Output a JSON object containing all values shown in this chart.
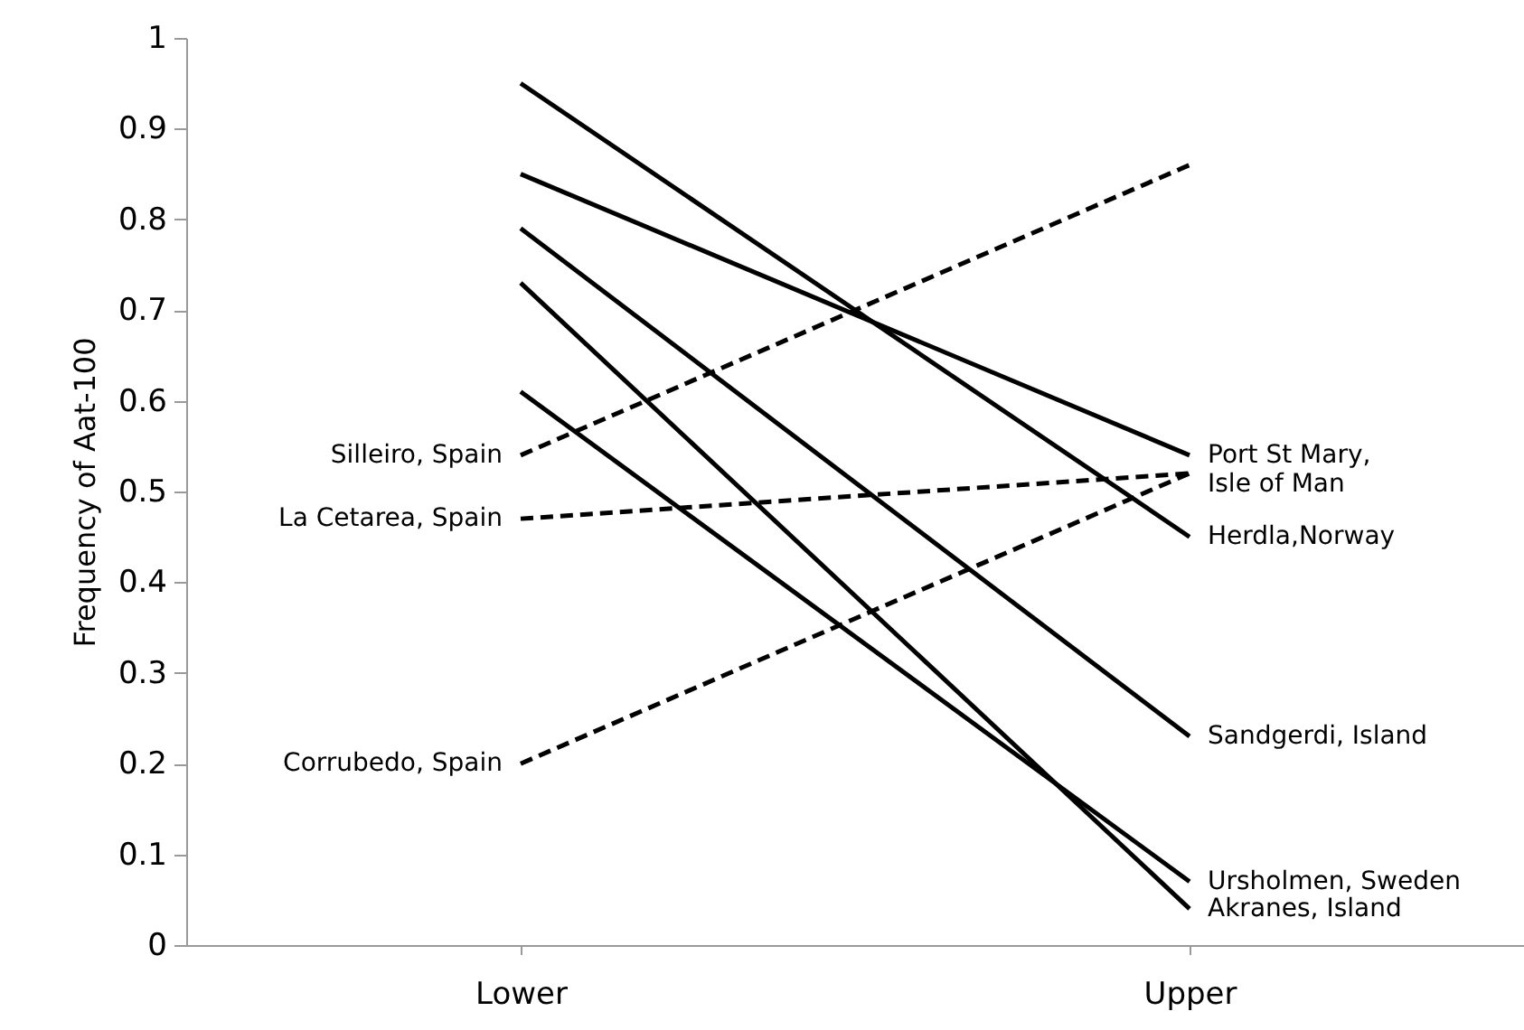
{
  "chart_data": {
    "type": "line",
    "ylabel": "Frequency of Aat-100",
    "categories": [
      "Lower",
      "Upper"
    ],
    "ylim": [
      0,
      1
    ],
    "yticks": [
      0,
      0.1,
      0.2,
      0.3,
      0.4,
      0.5,
      0.6,
      0.7,
      0.8,
      0.9,
      1
    ],
    "grid": false,
    "series": [
      {
        "name": "Port St Mary,\nIsle of Man",
        "color": "#000000",
        "line_style": "solid",
        "values": [
          0.85,
          0.54
        ]
      },
      {
        "name": "Herdla,Norway",
        "color": "#000000",
        "line_style": "solid",
        "values": [
          0.95,
          0.45
        ]
      },
      {
        "name": "Sandgerdi, Island",
        "color": "#000000",
        "line_style": "solid",
        "values": [
          0.79,
          0.23
        ]
      },
      {
        "name": "Ursholmen, Sweden",
        "color": "#000000",
        "line_style": "solid",
        "values": [
          0.61,
          0.07
        ]
      },
      {
        "name": "Akranes, Island",
        "color": "#000000",
        "line_style": "solid",
        "values": [
          0.73,
          0.04
        ]
      },
      {
        "name": "Silleiro, Spain",
        "color": "#000000",
        "line_style": "dashed",
        "values": [
          0.54,
          0.86
        ]
      },
      {
        "name": "La Cetarea, Spain",
        "color": "#000000",
        "line_style": "dashed",
        "values": [
          0.47,
          0.52
        ]
      },
      {
        "name": "Corrubedo, Spain",
        "color": "#000000",
        "line_style": "dashed",
        "values": [
          0.2,
          0.52
        ]
      }
    ]
  }
}
